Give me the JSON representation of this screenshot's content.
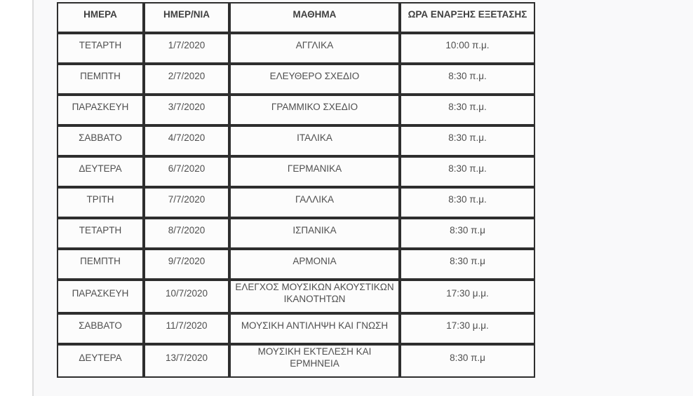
{
  "theme": {
    "page-background": "#f9f9fa",
    "left-strip-color": "#ffffff",
    "divider-color": "#dcdcdc",
    "border-color": "#2e2e2e",
    "cell-background": "#fcfcfc",
    "header-text-color": "#3f3f3f",
    "cell-text-color": "#4f4f4f"
  },
  "table": {
    "columns": {
      "day": "ΗΜΕΡΑ",
      "date": "ΗΜΕΡ/ΝΙΑ",
      "subject": "ΜΑΘΗΜΑ",
      "time": "ΩΡΑ ΕΝΑΡΞΗΣ ΕΞΕΤΑΣΗΣ"
    },
    "rows": [
      {
        "day": "ΤΕΤΑΡΤΗ",
        "date": "1/7/2020",
        "subject": "ΑΓΓΛΙΚΑ",
        "time": "10:00 π.μ."
      },
      {
        "day": "ΠΕΜΠΤΗ",
        "date": "2/7/2020",
        "subject": "ΕΛΕΥΘΕΡΟ ΣΧΕΔΙΟ",
        "time": "8:30 π.μ."
      },
      {
        "day": "ΠΑΡΑΣΚΕΥΗ",
        "date": "3/7/2020",
        "subject": "ΓΡΑΜΜΙΚΟ ΣΧΕΔΙΟ",
        "time": "8:30 π.μ."
      },
      {
        "day": "ΣΑΒΒΑΤΟ",
        "date": "4/7/2020",
        "subject": "ΙΤΑΛΙΚΑ",
        "time": "8:30 π.μ."
      },
      {
        "day": "ΔΕΥΤΕΡΑ",
        "date": "6/7/2020",
        "subject": "ΓΕΡΜΑΝΙΚΑ",
        "time": "8:30 π.μ."
      },
      {
        "day": "ΤΡΙΤΗ",
        "date": "7/7/2020",
        "subject": "ΓΑΛΛΙΚΑ",
        "time": "8:30 π.μ."
      },
      {
        "day": "ΤΕΤΑΡΤΗ",
        "date": "8/7/2020",
        "subject": "ΙΣΠΑΝΙΚΑ",
        "time": "8:30 π.μ"
      },
      {
        "day": "ΠΕΜΠΤΗ",
        "date": "9/7/2020",
        "subject": "ΑΡΜΟΝΙΑ",
        "time": "8:30 π.μ"
      },
      {
        "day": "ΠΑΡΑΣΚΕΥΗ",
        "date": "10/7/2020",
        "subject": "ΕΛΕΓΧΟΣ ΜΟΥΣΙΚΩΝ ΑΚΟΥΣΤΙΚΩΝ ΙΚΑΝΟΤΗΤΩΝ",
        "time": "17:30 μ.μ."
      },
      {
        "day": "ΣΑΒΒΑΤΟ",
        "date": "11/7/2020",
        "subject": "ΜΟΥΣΙΚΗ ΑΝΤΙΛΗΨΗ ΚΑΙ ΓΝΩΣΗ",
        "time": "17:30 μ.μ."
      },
      {
        "day": "ΔΕΥΤΕΡΑ",
        "date": "13/7/2020",
        "subject": "ΜΟΥΣΙΚΗ ΕΚΤΕΛΕΣΗ ΚΑΙ ΕΡΜΗΝΕΙΑ",
        "time": "8:30 π.μ"
      }
    ]
  }
}
